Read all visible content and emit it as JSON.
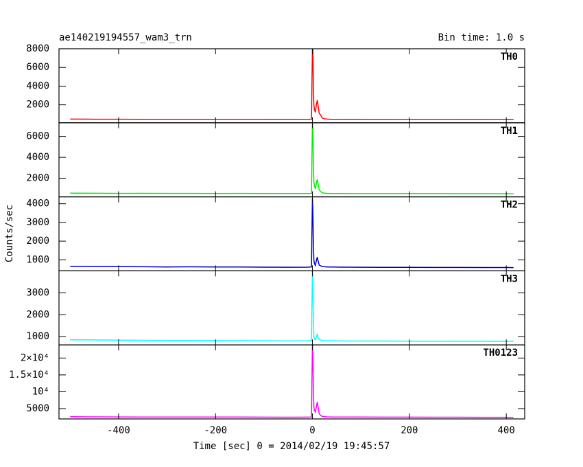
{
  "title": "ae140219194557_wam3_trn",
  "bin_time": "Bin time: 1.0 s",
  "ylabel": "Counts/sec",
  "xlabel": "Time [sec] 0 = 2014/02/19 19:45:57",
  "xlim": [
    -523,
    438
  ],
  "xticks": [
    -400,
    -200,
    0,
    200,
    400
  ],
  "x": [
    -500,
    -450,
    -400,
    -350,
    -300,
    -250,
    -200,
    -150,
    -100,
    -50,
    -10,
    -2,
    0,
    1,
    2,
    3,
    4,
    6,
    8,
    10,
    12,
    14,
    17,
    20,
    25,
    30,
    40,
    60,
    100,
    150,
    200,
    250,
    300,
    350,
    400,
    415
  ],
  "chart_data": [
    {
      "type": "line",
      "ylim": [
        75,
        8000
      ],
      "yticks": [
        2000,
        4000,
        6000,
        8000
      ],
      "series": [
        {
          "name": "TH0",
          "color": "#ff0000",
          "values": [
            470,
            460,
            455,
            450,
            445,
            450,
            440,
            445,
            440,
            435,
            440,
            450,
            8000,
            7900,
            4000,
            2000,
            1500,
            1200,
            2000,
            2500,
            1800,
            1100,
            900,
            600,
            500,
            470,
            450,
            440,
            435,
            430,
            430,
            425,
            425,
            420,
            420,
            415
          ]
        }
      ]
    },
    {
      "type": "line",
      "ylim": [
        230,
        7300
      ],
      "yticks": [
        2000,
        4000,
        6000
      ],
      "series": [
        {
          "name": "TH1",
          "color": "#00ee00",
          "values": [
            580,
            570,
            560,
            565,
            555,
            560,
            550,
            555,
            550,
            545,
            550,
            560,
            7300,
            6500,
            3400,
            1700,
            1300,
            1000,
            1500,
            1900,
            1400,
            900,
            750,
            620,
            580,
            560,
            550,
            545,
            540,
            540,
            535,
            535,
            530,
            530,
            525,
            525
          ]
        }
      ]
    },
    {
      "type": "line",
      "ylim": [
        410,
        4370
      ],
      "yticks": [
        1000,
        2000,
        3000,
        4000
      ],
      "series": [
        {
          "name": "TH2",
          "color": "#0000cc",
          "values": [
            650,
            640,
            635,
            630,
            620,
            625,
            615,
            620,
            610,
            605,
            610,
            620,
            4300,
            3500,
            1900,
            1000,
            800,
            700,
            950,
            1150,
            900,
            720,
            680,
            640,
            630,
            620,
            615,
            610,
            605,
            600,
            600,
            595,
            595,
            590,
            590,
            585
          ]
        }
      ]
    },
    {
      "type": "line",
      "ylim": [
        625,
        4000
      ],
      "yticks": [
        1000,
        2000,
        3000
      ],
      "series": [
        {
          "name": "TH3",
          "color": "#00ffff",
          "values": [
            860,
            850,
            840,
            835,
            830,
            825,
            820,
            815,
            810,
            805,
            810,
            820,
            4000,
            3200,
            1800,
            1000,
            900,
            850,
            1000,
            1100,
            950,
            870,
            850,
            830,
            820,
            815,
            810,
            805,
            800,
            800,
            795,
            795,
            790,
            790,
            785,
            800
          ]
        }
      ]
    },
    {
      "type": "line",
      "ylim": [
        1940,
        23900
      ],
      "yticks": [
        5000,
        {
          "value": 10000,
          "label": "10⁴"
        },
        {
          "value": 15000,
          "label": "1.5×10⁴"
        },
        {
          "value": 20000,
          "label": "2×10⁴"
        }
      ],
      "series": [
        {
          "name": "TH0123",
          "color": "#ff00ff",
          "values": [
            2600,
            2560,
            2540,
            2520,
            2500,
            2500,
            2480,
            2480,
            2460,
            2450,
            2460,
            2500,
            23900,
            21000,
            11000,
            5500,
            4500,
            4000,
            5500,
            7000,
            5200,
            3500,
            3000,
            2700,
            2600,
            2550,
            2520,
            2500,
            2480,
            2470,
            2460,
            2450,
            2440,
            2430,
            2420,
            2410
          ]
        }
      ]
    }
  ]
}
